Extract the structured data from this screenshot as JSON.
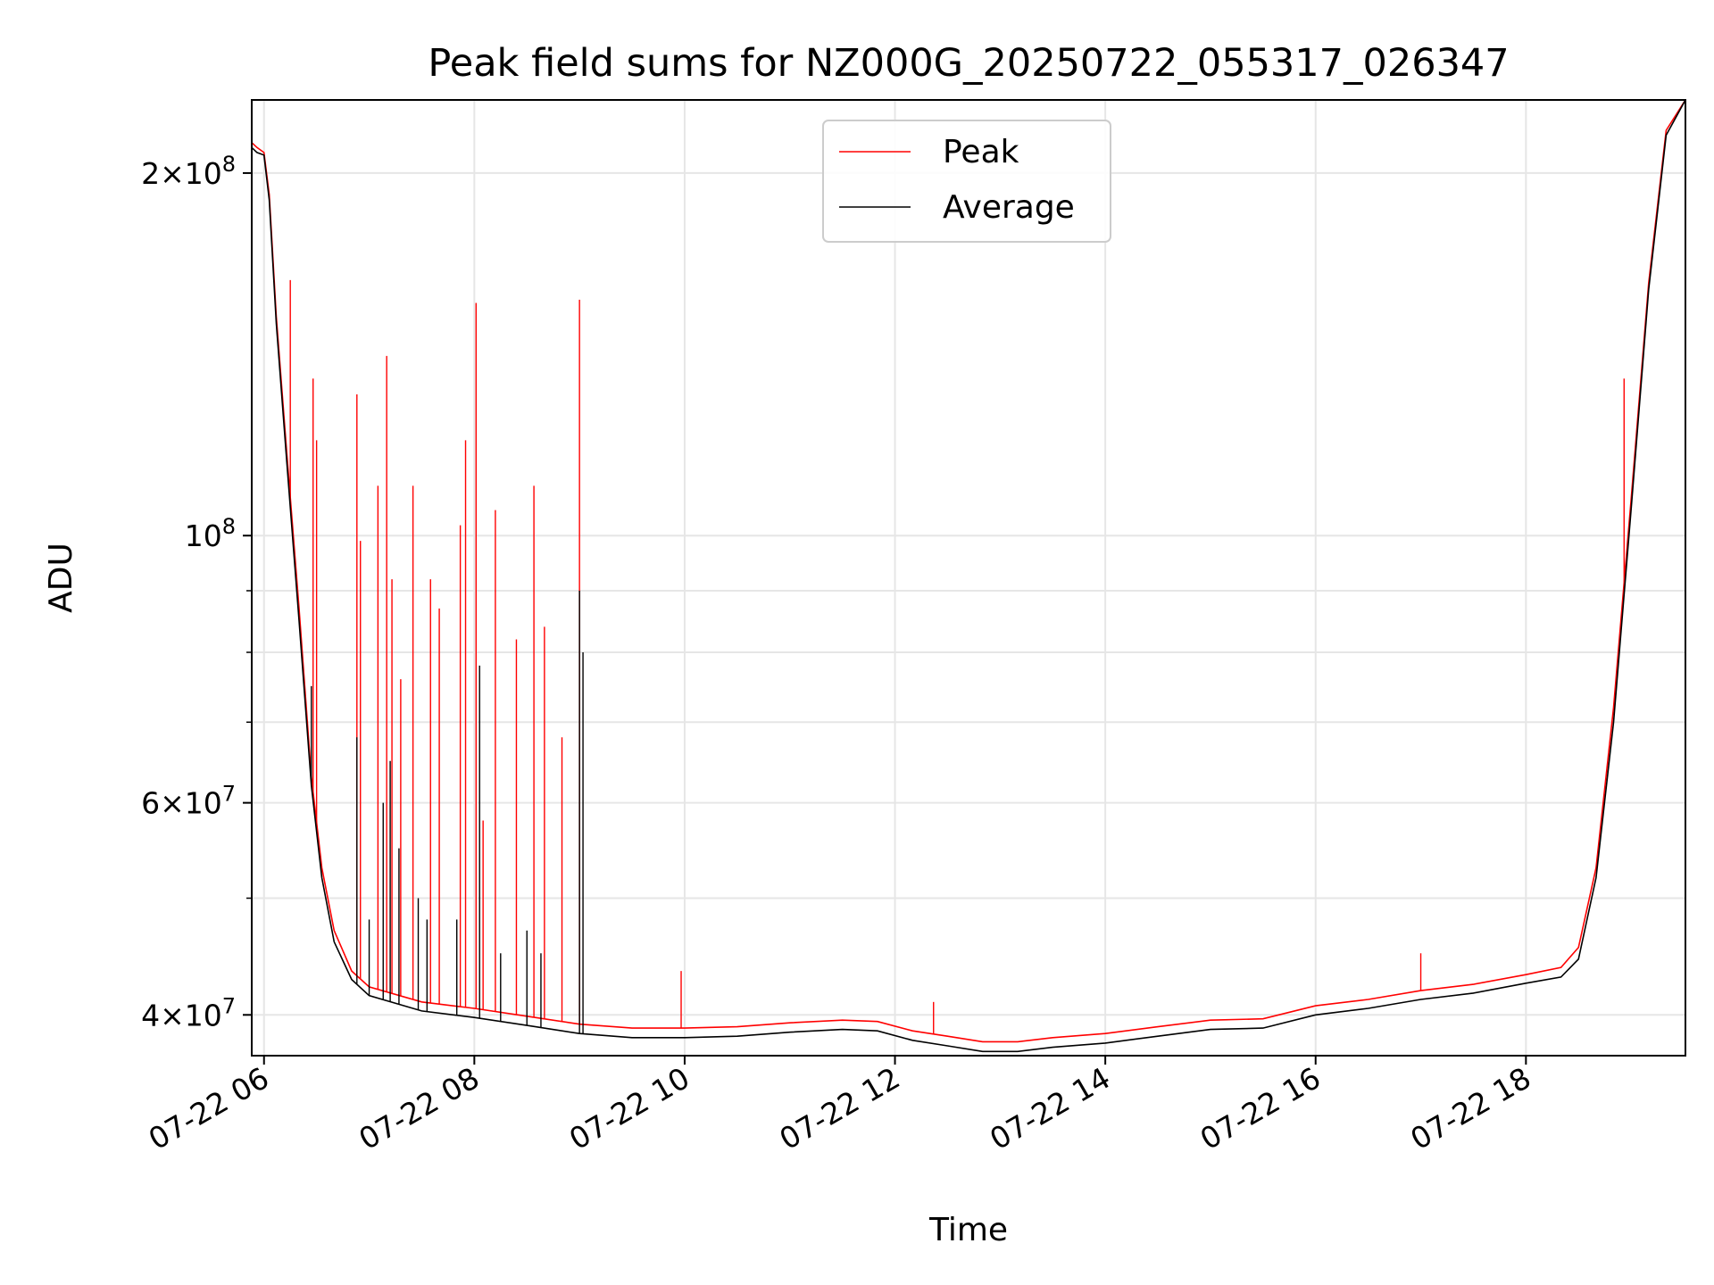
{
  "chart_data": {
    "type": "line",
    "title": "Peak field sums for NZ000G_20250722_055317_026347",
    "xlabel": "Time",
    "ylabel": "ADU",
    "y_scale": "log",
    "ylim": [
      37000000,
      230000000
    ],
    "xlim": [
      "07-22 05:53",
      "07-22 19:31"
    ],
    "grid": true,
    "legend_position": "top-center",
    "x_ticks": [
      {
        "t": "07-22 06:00",
        "label": "07-22 06"
      },
      {
        "t": "07-22 08:00",
        "label": "07-22 08"
      },
      {
        "t": "07-22 10:00",
        "label": "07-22 10"
      },
      {
        "t": "07-22 12:00",
        "label": "07-22 12"
      },
      {
        "t": "07-22 14:00",
        "label": "07-22 14"
      },
      {
        "t": "07-22 16:00",
        "label": "07-22 16"
      },
      {
        "t": "07-22 18:00",
        "label": "07-22 18"
      }
    ],
    "y_ticks": [
      {
        "value": 40000000,
        "mantissa": "4",
        "exponent": "7"
      },
      {
        "value": 60000000,
        "mantissa": "6",
        "exponent": "7"
      },
      {
        "value": 100000000,
        "mantissa": "",
        "exponent": "8"
      },
      {
        "value": 200000000,
        "mantissa": "2",
        "exponent": "8"
      }
    ],
    "y_minor_ticks": [
      50000000,
      70000000,
      80000000,
      90000000
    ],
    "series": [
      {
        "name": "Average",
        "color": "#000000",
        "points": [
          [
            "07-22 05:53",
            210000000
          ],
          [
            "07-22 05:56",
            208000000
          ],
          [
            "07-22 06:00",
            207000000
          ],
          [
            "07-22 06:03",
            190000000
          ],
          [
            "07-22 06:07",
            150000000
          ],
          [
            "07-22 06:13",
            115000000
          ],
          [
            "07-22 06:20",
            85000000
          ],
          [
            "07-22 06:27",
            62000000
          ],
          [
            "07-22 06:33",
            52000000
          ],
          [
            "07-22 06:40",
            46000000
          ],
          [
            "07-22 06:50",
            42800000
          ],
          [
            "07-22 07:00",
            41500000
          ],
          [
            "07-22 07:30",
            40300000
          ],
          [
            "07-22 08:00",
            39800000
          ],
          [
            "07-22 08:30",
            39200000
          ],
          [
            "07-22 09:00",
            38600000
          ],
          [
            "07-22 09:30",
            38300000
          ],
          [
            "07-22 10:00",
            38300000
          ],
          [
            "07-22 10:30",
            38400000
          ],
          [
            "07-22 11:00",
            38700000
          ],
          [
            "07-22 11:30",
            38900000
          ],
          [
            "07-22 11:50",
            38800000
          ],
          [
            "07-22 12:10",
            38100000
          ],
          [
            "07-22 12:30",
            37700000
          ],
          [
            "07-22 12:50",
            37300000
          ],
          [
            "07-22 13:10",
            37300000
          ],
          [
            "07-22 13:30",
            37600000
          ],
          [
            "07-22 14:00",
            37900000
          ],
          [
            "07-22 14:30",
            38400000
          ],
          [
            "07-22 15:00",
            38900000
          ],
          [
            "07-22 15:30",
            39000000
          ],
          [
            "07-22 16:00",
            40000000
          ],
          [
            "07-22 16:30",
            40500000
          ],
          [
            "07-22 17:00",
            41200000
          ],
          [
            "07-22 17:30",
            41700000
          ],
          [
            "07-22 18:00",
            42500000
          ],
          [
            "07-22 18:20",
            43000000
          ],
          [
            "07-22 18:30",
            44500000
          ],
          [
            "07-22 18:40",
            52000000
          ],
          [
            "07-22 18:50",
            70000000
          ],
          [
            "07-22 19:00",
            105000000
          ],
          [
            "07-22 19:10",
            160000000
          ],
          [
            "07-22 19:20",
            215000000
          ],
          [
            "07-22 19:31",
            230000000
          ]
        ],
        "spikes": [
          [
            "07-22 06:27",
            75000000
          ],
          [
            "07-22 06:53",
            68000000
          ],
          [
            "07-22 07:00",
            48000000
          ],
          [
            "07-22 07:08",
            60000000
          ],
          [
            "07-22 07:12",
            65000000
          ],
          [
            "07-22 07:17",
            55000000
          ],
          [
            "07-22 07:28",
            50000000
          ],
          [
            "07-22 07:33",
            48000000
          ],
          [
            "07-22 07:50",
            48000000
          ],
          [
            "07-22 08:03",
            78000000
          ],
          [
            "07-22 08:15",
            45000000
          ],
          [
            "07-22 08:30",
            47000000
          ],
          [
            "07-22 08:38",
            45000000
          ],
          [
            "07-22 09:00",
            90000000
          ],
          [
            "07-22 09:02",
            80000000
          ]
        ]
      },
      {
        "name": "Peak",
        "color": "#ff0000",
        "points": [
          [
            "07-22 05:53",
            212000000
          ],
          [
            "07-22 05:56",
            210000000
          ],
          [
            "07-22 06:00",
            208000000
          ],
          [
            "07-22 06:03",
            192000000
          ],
          [
            "07-22 06:07",
            152000000
          ],
          [
            "07-22 06:13",
            117000000
          ],
          [
            "07-22 06:20",
            87000000
          ],
          [
            "07-22 06:27",
            63000000
          ],
          [
            "07-22 06:33",
            53000000
          ],
          [
            "07-22 06:40",
            47000000
          ],
          [
            "07-22 06:50",
            43500000
          ],
          [
            "07-22 07:00",
            42200000
          ],
          [
            "07-22 07:30",
            41000000
          ],
          [
            "07-22 08:00",
            40500000
          ],
          [
            "07-22 08:30",
            39900000
          ],
          [
            "07-22 09:00",
            39300000
          ],
          [
            "07-22 09:30",
            39000000
          ],
          [
            "07-22 10:00",
            39000000
          ],
          [
            "07-22 10:30",
            39100000
          ],
          [
            "07-22 11:00",
            39400000
          ],
          [
            "07-22 11:30",
            39600000
          ],
          [
            "07-22 11:50",
            39500000
          ],
          [
            "07-22 12:10",
            38800000
          ],
          [
            "07-22 12:30",
            38400000
          ],
          [
            "07-22 12:50",
            38000000
          ],
          [
            "07-22 13:10",
            38000000
          ],
          [
            "07-22 13:30",
            38300000
          ],
          [
            "07-22 14:00",
            38600000
          ],
          [
            "07-22 14:30",
            39100000
          ],
          [
            "07-22 15:00",
            39600000
          ],
          [
            "07-22 15:30",
            39700000
          ],
          [
            "07-22 16:00",
            40700000
          ],
          [
            "07-22 16:30",
            41200000
          ],
          [
            "07-22 17:00",
            41900000
          ],
          [
            "07-22 17:30",
            42400000
          ],
          [
            "07-22 18:00",
            43200000
          ],
          [
            "07-22 18:20",
            43800000
          ],
          [
            "07-22 18:30",
            45500000
          ],
          [
            "07-22 18:40",
            53000000
          ],
          [
            "07-22 18:50",
            72000000
          ],
          [
            "07-22 19:00",
            107000000
          ],
          [
            "07-22 19:10",
            162000000
          ],
          [
            "07-22 19:20",
            217000000
          ],
          [
            "07-22 19:31",
            230000000
          ]
        ],
        "spikes": [
          [
            "07-22 06:15",
            163000000
          ],
          [
            "07-22 06:28",
            135000000
          ],
          [
            "07-22 06:30",
            120000000
          ],
          [
            "07-22 06:53",
            131000000
          ],
          [
            "07-22 06:55",
            99000000
          ],
          [
            "07-22 07:05",
            110000000
          ],
          [
            "07-22 07:10",
            141000000
          ],
          [
            "07-22 07:13",
            92000000
          ],
          [
            "07-22 07:18",
            76000000
          ],
          [
            "07-22 07:25",
            110000000
          ],
          [
            "07-22 07:35",
            92000000
          ],
          [
            "07-22 07:40",
            87000000
          ],
          [
            "07-22 07:52",
            102000000
          ],
          [
            "07-22 07:55",
            120000000
          ],
          [
            "07-22 08:01",
            156000000
          ],
          [
            "07-22 08:05",
            58000000
          ],
          [
            "07-22 08:12",
            105000000
          ],
          [
            "07-22 08:24",
            82000000
          ],
          [
            "07-22 08:34",
            110000000
          ],
          [
            "07-22 08:40",
            84000000
          ],
          [
            "07-22 08:50",
            68000000
          ],
          [
            "07-22 09:00",
            157000000
          ],
          [
            "07-22 09:58",
            43500000
          ],
          [
            "07-22 12:22",
            41000000
          ],
          [
            "07-22 17:00",
            45000000
          ],
          [
            "07-22 18:56",
            135000000
          ]
        ]
      }
    ]
  }
}
